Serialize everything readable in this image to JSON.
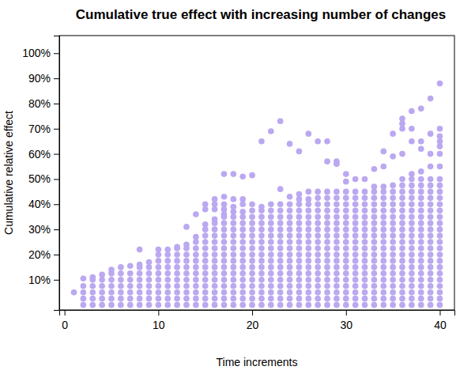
{
  "chart_data": {
    "type": "scatter",
    "title": "Cumulative true effect with increasing number of changes",
    "x_label": "Time increments",
    "y_label": "Cumulative relative effect",
    "color": "#bba8f0",
    "marker": "circle",
    "xlim": [
      -0.56,
      41.56
    ],
    "ylim": [
      -2,
      107
    ],
    "xticks": [
      0,
      10,
      20,
      30,
      40
    ],
    "yticks": [
      {
        "value": 10,
        "label": "10%"
      },
      {
        "value": 20,
        "label": "20%"
      },
      {
        "value": 30,
        "label": "30%"
      },
      {
        "value": 40,
        "label": "40%"
      },
      {
        "value": 50,
        "label": "50%"
      },
      {
        "value": 60,
        "label": "60%"
      },
      {
        "value": 70,
        "label": "70%"
      },
      {
        "value": 80,
        "label": "80%"
      },
      {
        "value": 90,
        "label": "90%"
      },
      {
        "value": 100,
        "label": "100%"
      }
    ],
    "x": [
      1,
      2,
      3,
      4,
      5,
      6,
      7,
      8,
      9,
      10,
      11,
      12,
      13,
      14,
      15,
      16,
      17,
      18,
      19,
      20,
      21,
      22,
      23,
      24,
      25,
      26,
      27,
      28,
      29,
      30,
      31,
      32,
      33,
      34,
      35,
      36,
      37,
      38,
      39,
      40
    ],
    "values": [
      [
        5
      ],
      [
        0,
        2.5,
        5,
        7.5,
        10.5
      ],
      [
        0,
        2.5,
        5,
        7.5,
        10,
        11
      ],
      [
        0,
        2.5,
        5,
        7.5,
        10,
        12
      ],
      [
        0,
        2.5,
        5,
        7.5,
        10,
        12.5,
        14
      ],
      [
        0,
        2.5,
        5,
        7.5,
        10,
        12.5,
        15
      ],
      [
        0,
        2.5,
        5,
        7.5,
        10,
        12.5,
        15.5
      ],
      [
        0,
        2.5,
        5,
        7.5,
        10,
        12.5,
        15,
        16,
        22
      ],
      [
        0,
        2.5,
        5,
        7.5,
        10,
        12.5,
        15,
        17
      ],
      [
        0,
        2.5,
        5,
        7.5,
        10,
        12.5,
        15,
        17.5,
        20,
        22
      ],
      [
        0,
        2.5,
        5,
        7.5,
        10,
        12.5,
        15,
        17.5,
        20,
        22
      ],
      [
        0,
        2.5,
        5,
        7.5,
        10,
        12.5,
        15,
        17.5,
        20,
        22.5,
        23
      ],
      [
        0,
        2.5,
        5,
        7.5,
        10,
        12.5,
        15,
        17.5,
        20,
        22.5,
        24,
        31
      ],
      [
        0,
        2.5,
        5,
        7.5,
        10,
        12.5,
        15,
        17.5,
        20,
        22.5,
        25,
        27,
        36
      ],
      [
        0,
        2.5,
        5,
        7.5,
        10,
        12.5,
        15,
        17.5,
        20,
        22.5,
        25,
        27.5,
        30,
        32,
        38,
        40
      ],
      [
        0,
        2.5,
        5,
        7.5,
        10,
        12.5,
        15,
        17.5,
        20,
        22.5,
        25,
        27.5,
        30,
        32.5,
        34,
        38,
        40,
        42
      ],
      [
        0,
        2.5,
        5,
        7.5,
        10,
        12.5,
        15,
        17.5,
        20,
        22.5,
        25,
        27.5,
        30,
        32.5,
        35,
        36,
        38,
        40,
        43,
        52
      ],
      [
        0,
        2.5,
        5,
        7.5,
        10,
        12.5,
        15,
        17.5,
        20,
        22.5,
        25,
        27.5,
        30,
        32.5,
        35,
        37,
        39,
        42,
        52
      ],
      [
        0,
        2.5,
        5,
        7.5,
        10,
        12.5,
        15,
        17.5,
        20,
        22.5,
        25,
        27.5,
        30,
        32.5,
        35,
        37,
        40,
        42,
        51
      ],
      [
        0,
        2.5,
        5,
        7.5,
        10,
        12.5,
        15,
        17.5,
        20,
        22.5,
        25,
        27.5,
        30,
        32.5,
        35,
        37.5,
        40,
        51.5
      ],
      [
        0,
        2.5,
        5,
        7.5,
        10,
        12.5,
        15,
        17.5,
        20,
        22.5,
        25,
        27.5,
        30,
        32.5,
        35,
        37.5,
        39,
        65
      ],
      [
        0,
        2.5,
        5,
        7.5,
        10,
        12.5,
        15,
        17.5,
        20,
        22.5,
        25,
        27.5,
        30,
        32.5,
        35,
        37.5,
        40,
        69
      ],
      [
        0,
        2.5,
        5,
        7.5,
        10,
        12.5,
        15,
        17.5,
        20,
        22.5,
        25,
        27.5,
        30,
        32.5,
        35,
        37.5,
        40,
        46,
        73
      ],
      [
        0,
        2.5,
        5,
        7.5,
        10,
        12.5,
        15,
        17.5,
        20,
        22.5,
        25,
        27.5,
        30,
        32.5,
        35,
        37.5,
        40,
        43,
        64
      ],
      [
        0,
        2.5,
        5,
        7.5,
        10,
        12.5,
        15,
        17.5,
        20,
        22.5,
        25,
        27.5,
        30,
        32.5,
        35,
        37.5,
        40,
        42,
        44,
        61
      ],
      [
        0,
        2.5,
        5,
        7.5,
        10,
        12.5,
        15,
        17.5,
        20,
        22.5,
        25,
        27.5,
        30,
        32.5,
        35,
        37.5,
        40,
        42,
        45,
        68
      ],
      [
        0,
        2.5,
        5,
        7.5,
        10,
        12.5,
        15,
        17.5,
        20,
        22.5,
        25,
        27.5,
        30,
        32.5,
        35,
        37.5,
        40,
        42.5,
        45,
        65
      ],
      [
        0,
        2.5,
        5,
        7.5,
        10,
        12.5,
        15,
        17.5,
        20,
        22.5,
        25,
        27.5,
        30,
        32.5,
        35,
        37.5,
        40,
        42.5,
        45,
        57,
        65
      ],
      [
        0,
        2.5,
        5,
        7.5,
        10,
        12.5,
        15,
        17.5,
        20,
        22.5,
        25,
        27.5,
        30,
        32.5,
        35,
        37.5,
        40,
        42.5,
        45,
        56,
        57
      ],
      [
        0,
        2.5,
        5,
        7.5,
        10,
        12.5,
        15,
        17.5,
        20,
        22.5,
        25,
        27.5,
        30,
        32.5,
        35,
        37.5,
        40,
        42.5,
        45,
        49,
        52
      ],
      [
        0,
        2.5,
        5,
        7.5,
        10,
        12.5,
        15,
        17.5,
        20,
        22.5,
        25,
        27.5,
        30,
        32.5,
        35,
        37.5,
        40,
        42.5,
        45,
        50
      ],
      [
        0,
        2.5,
        5,
        7.5,
        10,
        12.5,
        15,
        17.5,
        20,
        22.5,
        25,
        27.5,
        30,
        32.5,
        35,
        37.5,
        40,
        42.5,
        45,
        50
      ],
      [
        0,
        2.5,
        5,
        7.5,
        10,
        12.5,
        15,
        17.5,
        20,
        22.5,
        25,
        27.5,
        30,
        32.5,
        35,
        37.5,
        40,
        42.5,
        45,
        47,
        54
      ],
      [
        0,
        2.5,
        5,
        7.5,
        10,
        12.5,
        15,
        17.5,
        20,
        22.5,
        25,
        27.5,
        30,
        32.5,
        35,
        37.5,
        40,
        42.5,
        45,
        47,
        55,
        61
      ],
      [
        0,
        2.5,
        5,
        7.5,
        10,
        12.5,
        15,
        17.5,
        20,
        22.5,
        25,
        27.5,
        30,
        32.5,
        35,
        37.5,
        40,
        42.5,
        45,
        47.5,
        59,
        68
      ],
      [
        0,
        2.5,
        5,
        7.5,
        10,
        12.5,
        15,
        17.5,
        20,
        22.5,
        25,
        27.5,
        30,
        32.5,
        35,
        37.5,
        40,
        42.5,
        45,
        47.5,
        50,
        60,
        70,
        72,
        74
      ],
      [
        0,
        2.5,
        5,
        7.5,
        10,
        12.5,
        15,
        17.5,
        20,
        22.5,
        25,
        27.5,
        30,
        32.5,
        35,
        37.5,
        40,
        42.5,
        45,
        47.5,
        50,
        52,
        65,
        70,
        77
      ],
      [
        0,
        2.5,
        5,
        7.5,
        10,
        12.5,
        15,
        17.5,
        20,
        22.5,
        25,
        27.5,
        30,
        32.5,
        35,
        37.5,
        40,
        42.5,
        45,
        47.5,
        50,
        53,
        62,
        65,
        78
      ],
      [
        0,
        2.5,
        5,
        7.5,
        10,
        12.5,
        15,
        17.5,
        20,
        22.5,
        25,
        27.5,
        30,
        32.5,
        35,
        37.5,
        40,
        42.5,
        45,
        47.5,
        50,
        55,
        60,
        68,
        82
      ],
      [
        0,
        2.5,
        5,
        7.5,
        10,
        12.5,
        15,
        17.5,
        20,
        22.5,
        25,
        27.5,
        30,
        32.5,
        35,
        37.5,
        40,
        42.5,
        45,
        47.5,
        50,
        55,
        60,
        63,
        65,
        67,
        70,
        88
      ]
    ]
  }
}
